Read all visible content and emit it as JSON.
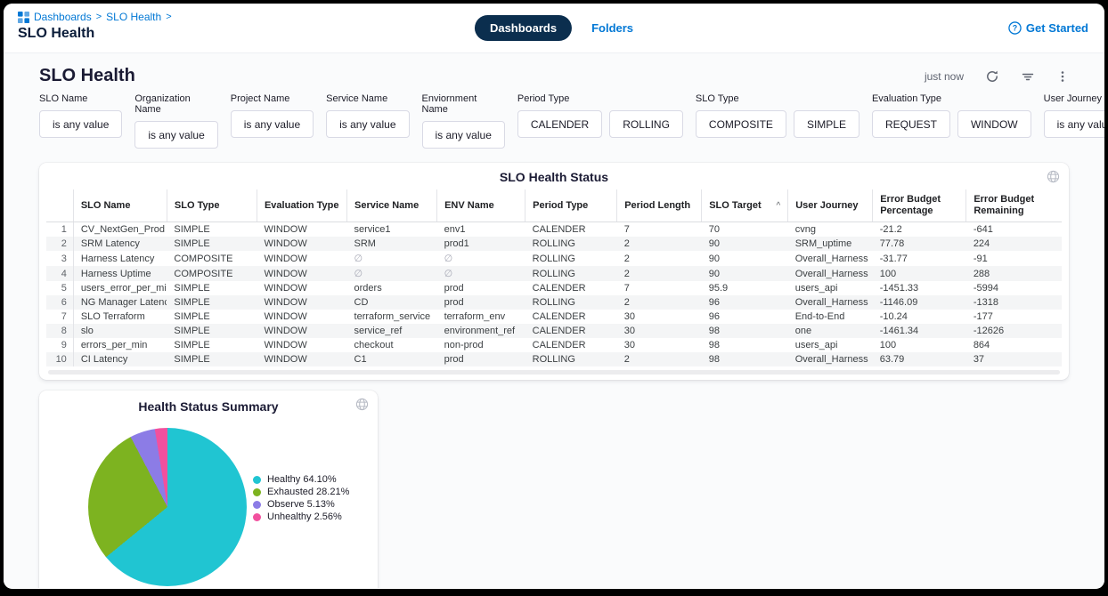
{
  "header": {
    "breadcrumb": {
      "items": [
        "Dashboards",
        "SLO Health"
      ],
      "separator": ">"
    },
    "page_title": "SLO Health",
    "tabs": [
      {
        "label": "Dashboards",
        "active": true
      },
      {
        "label": "Folders",
        "active": false
      }
    ],
    "get_started_label": "Get Started"
  },
  "toolbar": {
    "dashboard_title": "SLO Health",
    "refreshed": "just now"
  },
  "filters": [
    {
      "label": "SLO Name",
      "buttons": [
        "is any value"
      ]
    },
    {
      "label": "Organization Name",
      "buttons": [
        "is any value"
      ]
    },
    {
      "label": "Project Name",
      "buttons": [
        "is any value"
      ]
    },
    {
      "label": "Service Name",
      "buttons": [
        "is any value"
      ]
    },
    {
      "label": "Enviornment Name",
      "buttons": [
        "is any value"
      ]
    },
    {
      "label": "Period Type",
      "buttons": [
        "CALENDER",
        "ROLLING"
      ]
    },
    {
      "label": "SLO Type",
      "buttons": [
        "COMPOSITE",
        "SIMPLE"
      ]
    },
    {
      "label": "Evaluation Type",
      "buttons": [
        "REQUEST",
        "WINDOW"
      ]
    },
    {
      "label": "User Journey",
      "buttons": [
        "is any value"
      ]
    }
  ],
  "table": {
    "title": "SLO Health Status",
    "columns": [
      "SLO Name",
      "SLO Type",
      "Evaluation Type",
      "Service Name",
      "ENV Name",
      "Period Type",
      "Period Length",
      "SLO Target",
      "User Journey",
      "Error Budget Percentage",
      "Error Budget Remaining"
    ],
    "sort_column": "SLO Target",
    "sort_direction": "asc",
    "rows": [
      [
        "CV_NextGen_Prod",
        "SIMPLE",
        "WINDOW",
        "service1",
        "env1",
        "CALENDER",
        "7",
        "70",
        "cvng",
        "-21.2",
        "-641"
      ],
      [
        "SRM Latency",
        "SIMPLE",
        "WINDOW",
        "SRM",
        "prod1",
        "ROLLING",
        "2",
        "90",
        "SRM_uptime",
        "77.78",
        "224"
      ],
      [
        "Harness Latency",
        "COMPOSITE",
        "WINDOW",
        "∅",
        "∅",
        "ROLLING",
        "2",
        "90",
        "Overall_Harness",
        "-31.77",
        "-91"
      ],
      [
        "Harness Uptime",
        "COMPOSITE",
        "WINDOW",
        "∅",
        "∅",
        "ROLLING",
        "2",
        "90",
        "Overall_Harness",
        "100",
        "288"
      ],
      [
        "users_error_per_min",
        "SIMPLE",
        "WINDOW",
        "orders",
        "prod",
        "CALENDER",
        "7",
        "95.9",
        "users_api",
        "-1451.33",
        "-5994"
      ],
      [
        "NG Manager Latency",
        "SIMPLE",
        "WINDOW",
        "CD",
        "prod",
        "ROLLING",
        "2",
        "96",
        "Overall_Harness",
        "-1146.09",
        "-1318"
      ],
      [
        "SLO Terraform",
        "SIMPLE",
        "WINDOW",
        "terraform_service",
        "terraform_env",
        "CALENDER",
        "30",
        "96",
        "End-to-End",
        "-10.24",
        "-177"
      ],
      [
        "slo",
        "SIMPLE",
        "WINDOW",
        "service_ref",
        "environment_ref",
        "CALENDER",
        "30",
        "98",
        "one",
        "-1461.34",
        "-12626"
      ],
      [
        "errors_per_min",
        "SIMPLE",
        "WINDOW",
        "checkout",
        "non-prod",
        "CALENDER",
        "30",
        "98",
        "users_api",
        "100",
        "864"
      ],
      [
        "CI Latency",
        "SIMPLE",
        "WINDOW",
        "C1",
        "prod",
        "ROLLING",
        "2",
        "98",
        "Overall_Harness",
        "63.79",
        "37"
      ]
    ]
  },
  "chart_data": {
    "type": "pie",
    "title": "Health Status Summary",
    "legend_position": "right",
    "start_angle_deg": 0,
    "slices": [
      {
        "label": "Healthy",
        "value": 64.1,
        "display": "64.10%",
        "color": "#20c5d2"
      },
      {
        "label": "Exhausted",
        "value": 28.21,
        "display": "28.21%",
        "color": "#7db320"
      },
      {
        "label": "Observe",
        "value": 5.13,
        "display": "5.13%",
        "color": "#8c7ce6"
      },
      {
        "label": "Unhealthy",
        "value": 2.56,
        "display": "2.56%",
        "color": "#f2509e"
      }
    ]
  },
  "colors": {
    "accent_blue": "#0278d5",
    "navy_pill": "#0b2e4e",
    "page_bg": "#fafbfc",
    "zebra_row": "#f4f5f6"
  }
}
